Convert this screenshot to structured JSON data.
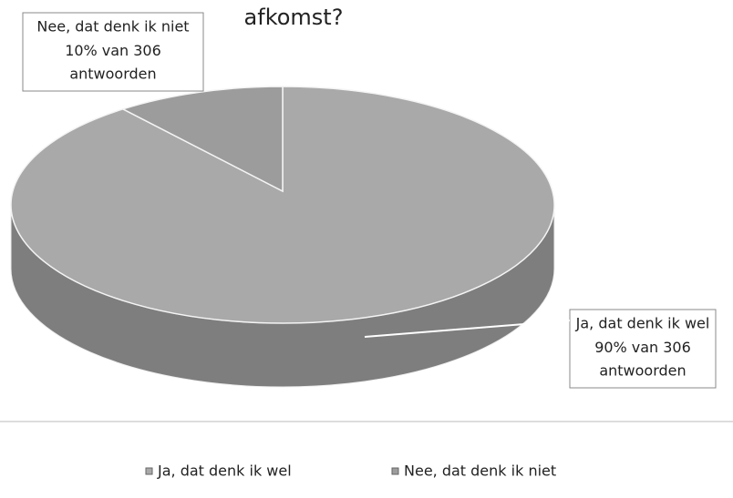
{
  "chart_data": {
    "type": "pie",
    "title": "afkomst?",
    "categories": [
      "Ja, dat denk ik wel",
      "Nee, dat denk ik niet"
    ],
    "values": [
      90,
      10
    ],
    "value_labels": [
      "90%",
      "10%"
    ],
    "count_label": "van 306",
    "unit_label": "antwoorden",
    "colors": [
      "#a9a9a9",
      "#9c9c9c"
    ],
    "side_color": "#7e7e7e",
    "legend": "bottom"
  }
}
